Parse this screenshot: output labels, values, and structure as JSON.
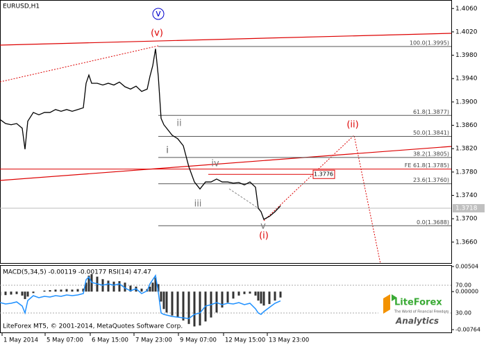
{
  "chart_data": [
    {
      "type": "line",
      "title": "EURUSD,H1",
      "color": "#000000",
      "x": [
        0,
        4,
        8,
        12,
        16,
        18,
        20,
        24,
        28,
        32,
        36,
        40,
        44,
        48,
        52,
        56,
        60,
        62,
        64,
        66,
        70,
        74,
        78,
        82,
        86,
        90,
        94,
        98,
        102,
        106,
        108,
        110,
        112,
        114,
        116,
        118,
        120,
        124,
        128,
        132,
        136,
        140,
        144,
        148,
        152,
        156,
        160,
        164,
        168,
        172,
        176,
        180,
        184,
        186,
        188,
        190,
        194,
        198,
        202
      ],
      "values": [
        1.387,
        1.3863,
        1.3861,
        1.3863,
        1.3855,
        1.3819,
        1.3867,
        1.3882,
        1.3878,
        1.3882,
        1.3882,
        1.3887,
        1.3884,
        1.3887,
        1.3884,
        1.3887,
        1.389,
        1.3932,
        1.3946,
        1.3932,
        1.3932,
        1.3929,
        1.3932,
        1.3929,
        1.3934,
        1.3926,
        1.3922,
        1.3927,
        1.3918,
        1.3922,
        1.3944,
        1.3962,
        1.3991,
        1.3944,
        1.3872,
        1.3861,
        1.3855,
        1.3843,
        1.3837,
        1.3825,
        1.3789,
        1.3763,
        1.3751,
        1.3763,
        1.3763,
        1.3768,
        1.3763,
        1.3763,
        1.3761,
        1.3762,
        1.3758,
        1.3763,
        1.3754,
        1.3718,
        1.3712,
        1.3699,
        1.3704,
        1.3712,
        1.3722
      ],
      "xlim": [
        0,
        325
      ],
      "ylim": [
        1.3623,
        1.4071
      ],
      "yticks": [
        {
          "value": 1.406,
          "label": "1.4060"
        },
        {
          "value": 1.402,
          "label": "1.4020"
        },
        {
          "value": 1.398,
          "label": "1.3980"
        },
        {
          "value": 1.394,
          "label": "1.3940"
        },
        {
          "value": 1.39,
          "label": "1.3900"
        },
        {
          "value": 1.386,
          "label": "1.3860"
        },
        {
          "value": 1.382,
          "label": "1.3820"
        },
        {
          "value": 1.378,
          "label": "1.3780"
        },
        {
          "value": 1.374,
          "label": "1.3740"
        },
        {
          "value": 1.37,
          "label": "1.3700"
        },
        {
          "value": 1.366,
          "label": "1.3660"
        }
      ],
      "fib_levels": [
        {
          "label": "100.0(1.3995)",
          "price": 1.3995
        },
        {
          "label": "61.8(1.3877)",
          "price": 1.3877
        },
        {
          "label": "50.0(1.3841)",
          "price": 1.3841
        },
        {
          "label": "38.2(1.3805)",
          "price": 1.3805
        },
        {
          "label": "23.6(1.3760)",
          "price": 1.376
        },
        {
          "label": "0.0(1.3688)",
          "price": 1.3688
        }
      ],
      "fe_level": {
        "label": "FE 61.8(1.3785)",
        "price": 1.3785
      },
      "level_box": {
        "value": 1.3776,
        "label": "1.3776"
      },
      "current_price": {
        "value": 1.3718,
        "label": "1.3718"
      },
      "wave_labels": [
        "v",
        "(v)",
        "ii",
        "i",
        "iv",
        "iii",
        "v",
        "(i)",
        "(ii)"
      ]
    },
    {
      "type": "bar",
      "title": "MACD(5,34,5) -0.00119 -0.00177 RSI(14) 47.47",
      "color": "#333333",
      "x": [
        0,
        4,
        8,
        12,
        16,
        18,
        20,
        24,
        28,
        32,
        36,
        40,
        44,
        48,
        52,
        56,
        60,
        62,
        64,
        66,
        70,
        74,
        78,
        82,
        86,
        90,
        94,
        98,
        102,
        106,
        108,
        110,
        112,
        114,
        116,
        118,
        120,
        124,
        128,
        132,
        136,
        140,
        144,
        148,
        152,
        156,
        160,
        164,
        168,
        172,
        176,
        180,
        184,
        186,
        188,
        190,
        194,
        198,
        202
      ],
      "values": [
        -0.0008,
        -0.0007,
        -0.0006,
        -0.0005,
        -0.0008,
        -0.0015,
        -0.001,
        -0.0003,
        0.0,
        0.0002,
        0.0003,
        0.0004,
        0.0004,
        0.0005,
        0.0004,
        0.0005,
        0.0006,
        0.0018,
        0.0032,
        0.0035,
        0.003,
        0.0025,
        0.0022,
        0.002,
        0.0021,
        0.0018,
        0.0012,
        0.001,
        0.0006,
        0.0005,
        0.001,
        0.0018,
        0.0028,
        0.0015,
        -0.002,
        -0.0035,
        -0.0042,
        -0.0048,
        -0.0052,
        -0.0058,
        -0.0065,
        -0.007,
        -0.0068,
        -0.006,
        -0.0052,
        -0.0042,
        -0.0032,
        -0.0022,
        -0.0014,
        -0.0008,
        -0.0005,
        -0.0004,
        -0.0008,
        -0.0018,
        -0.0024,
        -0.0028,
        -0.0025,
        -0.0018,
        -0.00119
      ],
      "line": {
        "color": "#1e90ff",
        "axis": "y2",
        "values": [
          45,
          43,
          44,
          46,
          40,
          30,
          48,
          55,
          52,
          54,
          53,
          55,
          54,
          56,
          55,
          56,
          58,
          78,
          82,
          74,
          72,
          70,
          72,
          70,
          72,
          66,
          62,
          65,
          58,
          62,
          72,
          78,
          84,
          60,
          30,
          28,
          27,
          25,
          24,
          23,
          22,
          28,
          30,
          40,
          42,
          45,
          42,
          44,
          43,
          45,
          42,
          44,
          36,
          30,
          28,
          32,
          38,
          44,
          47.47
        ]
      },
      "xlim": [
        0,
        325
      ],
      "ylim": [
        -0.00764,
        0.00504
      ],
      "yticks": [
        0.00504,
        {
          "value": 0,
          "label": "0.00000"
        },
        -0.00764
      ],
      "y2lim": [
        6,
        97
      ],
      "y2ticks": [
        {
          "value": 70,
          "label": "70.00"
        },
        {
          "value": 30,
          "label": "30.00"
        }
      ],
      "xticks": [
        {
          "value": 1.5,
          "label": "1 May 2014"
        },
        {
          "value": 32.5,
          "label": "5 May 07:00"
        },
        {
          "value": 65,
          "label": "6 May 15:00"
        },
        {
          "value": 96.5,
          "label": "7 May 23:00"
        },
        {
          "value": 128.5,
          "label": "9 May 07:00"
        },
        {
          "value": 161,
          "label": "12 May 15:00"
        },
        {
          "value": 192.5,
          "label": "13 May 23:00"
        }
      ]
    }
  ],
  "footer": {
    "copyright": "LiteForex MT5, © 2001-2014, MetaQuotes Software Corp.",
    "brand": "LiteForex",
    "tagline": "The World of Financial Freedom",
    "product": "Analytics"
  }
}
